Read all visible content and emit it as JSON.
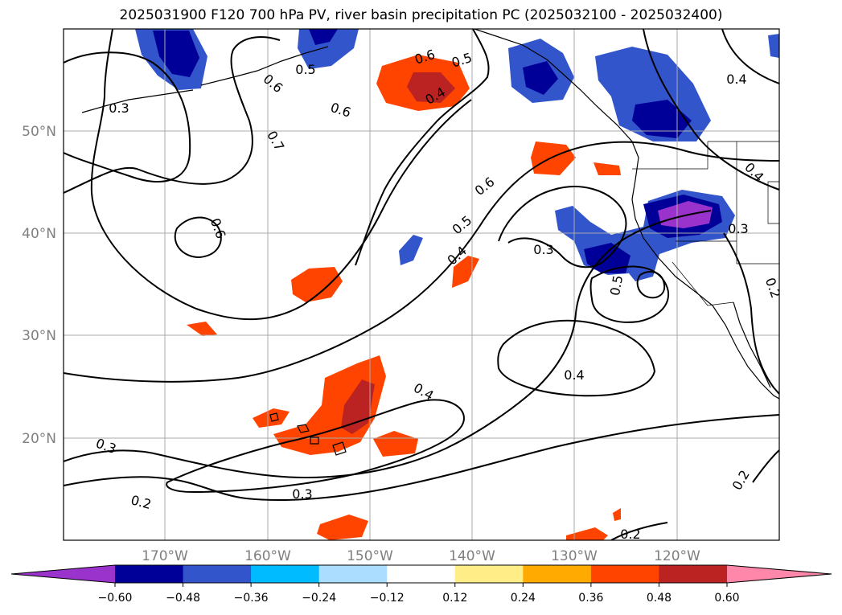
{
  "title": "2025031900 F120 700 hPa PV, river basin precipitation PC (2025032100 - 2025032400)",
  "map": {
    "lat_labels": [
      "50°N",
      "40°N",
      "30°N",
      "20°N"
    ],
    "lon_labels": [
      "170°W",
      "160°W",
      "150°W",
      "140°W",
      "130°W",
      "120°W"
    ],
    "contour_labels": [
      "0.6",
      "0.5",
      "0.5",
      "0.6",
      "0.4",
      "0.6",
      "0.3",
      "0.7",
      "0.6",
      "0.6",
      "0.5",
      "0.4",
      "0.4",
      "0.3",
      "0.5",
      "0.4",
      "0.3",
      "0.2",
      "0.4",
      "0.4",
      "0.3",
      "0.3",
      "0.2",
      "0.2",
      "0.2"
    ]
  },
  "colorbar": {
    "ticks": [
      "−0.60",
      "−0.48",
      "−0.36",
      "−0.24",
      "−0.12",
      "0.12",
      "0.24",
      "0.36",
      "0.48",
      "0.60"
    ],
    "colors": {
      "under": "#9933cc",
      "bins": [
        "#000099",
        "#3355cc",
        "#00bbff",
        "#aaddff",
        "#ffffff",
        "#ffee88",
        "#ffaa00",
        "#ff4400",
        "#bb2222"
      ],
      "over": "#ff88aa"
    }
  }
}
